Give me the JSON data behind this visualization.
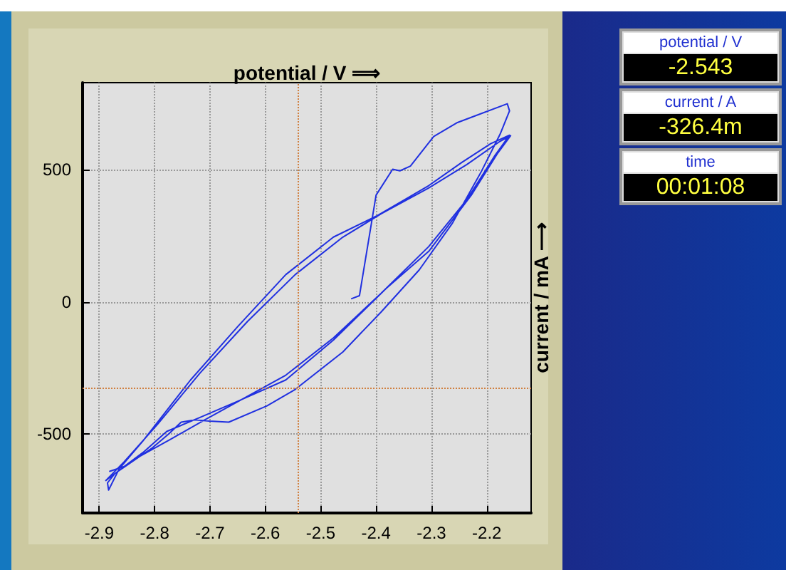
{
  "chart_data": {
    "type": "line",
    "xlabel": "potential / V ⟹",
    "ylabel": "current / mA ⟶",
    "xlim": [
      -2.93,
      -2.12
    ],
    "ylim": [
      -800,
      830
    ],
    "xticks": [
      -2.9,
      -2.8,
      -2.7,
      -2.6,
      -2.5,
      -2.4,
      -2.3,
      -2.2
    ],
    "yticks": [
      -500,
      0,
      500
    ],
    "grid": true,
    "marker": "none",
    "line_style": "solid",
    "series": [
      {
        "color": "#2030e0",
        "x": [
          -2.444,
          -2.43,
          -2.4,
          -2.37,
          -2.357,
          -2.338,
          -2.296,
          -2.253,
          -2.219,
          -2.163,
          -2.159,
          -2.176,
          -2.21,
          -2.262,
          -2.322,
          -2.391,
          -2.46,
          -2.546,
          -2.597,
          -2.666,
          -2.701,
          -2.727,
          -2.752,
          -2.774,
          -2.804,
          -2.847,
          -2.872,
          -2.885,
          -2.883,
          -2.864,
          -2.821,
          -2.735,
          -2.649,
          -2.563,
          -2.477,
          -2.4,
          -2.305,
          -2.245,
          -2.193,
          -2.159,
          -2.185,
          -2.236,
          -2.305,
          -2.391,
          -2.477,
          -2.563,
          -2.632,
          -2.709,
          -2.769,
          -2.83,
          -2.872,
          -2.888,
          -2.855,
          -2.795,
          -2.718,
          -2.632,
          -2.546,
          -2.46,
          -2.391,
          -2.305,
          -2.236,
          -2.176,
          -2.157,
          -2.18,
          -2.228,
          -2.305,
          -2.382,
          -2.477,
          -2.563,
          -2.649,
          -2.718,
          -2.778,
          -2.821,
          -2.855,
          -2.881
        ],
        "values": [
          12,
          23,
          404,
          502,
          496,
          514,
          626,
          679,
          706,
          750,
          723,
          635,
          493,
          298,
          121,
          -39,
          -190,
          -332,
          -394,
          -456,
          -452,
          -447,
          -456,
          -500,
          -553,
          -615,
          -651,
          -686,
          -713,
          -633,
          -527,
          -296,
          -92,
          103,
          245,
          324,
          440,
          528,
          599,
          631,
          555,
          387,
          209,
          32,
          -137,
          -278,
          -358,
          -447,
          -518,
          -589,
          -651,
          -677,
          -606,
          -465,
          -270,
          -74,
          103,
          245,
          333,
          431,
          520,
          608,
          629,
          564,
          404,
          191,
          50,
          -145,
          -296,
          -376,
          -438,
          -491,
          -571,
          -624,
          -642
        ]
      }
    ],
    "ref_lines": [
      {
        "axis": "x",
        "value": -2.543,
        "color": "#d08040",
        "line_style": "dotted"
      },
      {
        "axis": "y",
        "value": -326.4,
        "color": "#d08040",
        "line_style": "dotted"
      }
    ],
    "annotations": [
      "potential / V",
      "-2.543",
      "current / A",
      "-326.4m",
      "time",
      "00:01:08"
    ]
  }
}
